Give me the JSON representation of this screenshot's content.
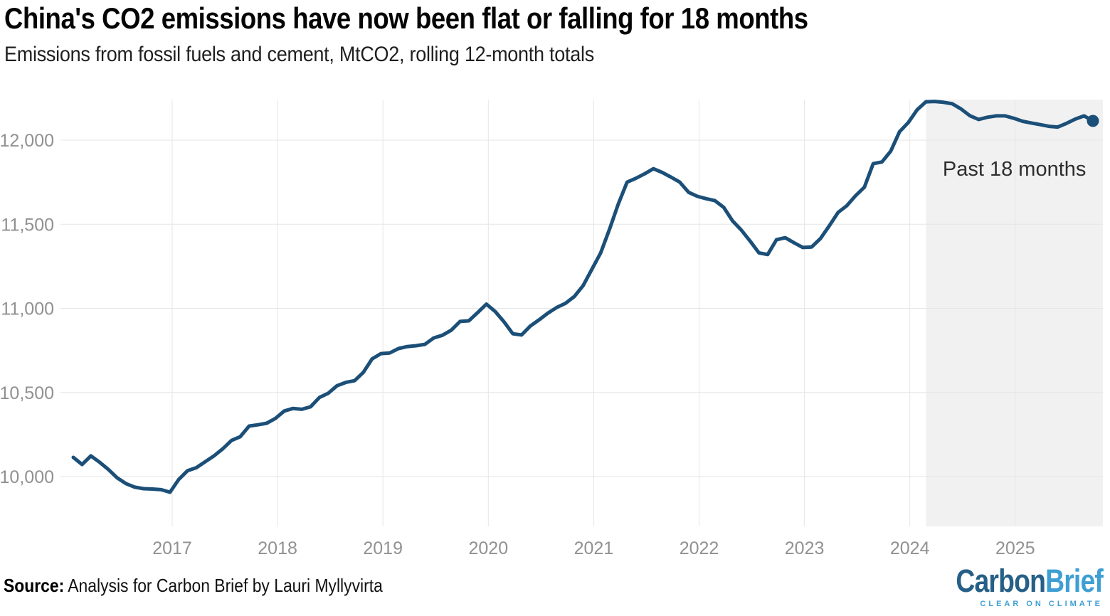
{
  "header": {
    "title": "China's CO2 emissions have now been flat or falling for 18 months",
    "subtitle": "Emissions from fossil fuels and cement, MtCO2, rolling 12-month totals"
  },
  "footer": {
    "source_label": "Source:",
    "source_text": "Analysis for Carbon Brief by Lauri Myllyvirta"
  },
  "logo": {
    "part1": "Carbon",
    "part2": "Brief",
    "tagline": "CLEAR ON CLIMATE"
  },
  "colors": {
    "line": "#1b4f78",
    "band": "#f1f1f1",
    "grid": "#e6e6e6",
    "axis_text": "#919191",
    "annotation_text": "#2e2e2e",
    "logo_dark": "#265f87",
    "logo_light": "#3e9fd4"
  },
  "chart_data": {
    "type": "line",
    "title": "China's CO2 emissions have now been flat or falling for 18 months",
    "subtitle": "Emissions from fossil fuels and cement, MtCO2, rolling 12-month totals",
    "ylabel": "MtCO2, rolling 12-month totals",
    "xlabel": "",
    "legend": false,
    "grid": "horizontal-and-vertical",
    "ylim": [
      9700,
      12250
    ],
    "y_ticks": [
      10000,
      10500,
      11000,
      11500,
      12000
    ],
    "x_ticks": [
      "2017",
      "2018",
      "2019",
      "2020",
      "2021",
      "2022",
      "2023",
      "2024",
      "2025"
    ],
    "annotation": "Past 18 months",
    "highlight_band": {
      "start": "2024-03",
      "end": "2025-10",
      "label": "Past 18 months"
    },
    "x": [
      "2016-02",
      "2016-03",
      "2016-04",
      "2016-05",
      "2016-06",
      "2016-07",
      "2016-08",
      "2016-09",
      "2016-10",
      "2016-11",
      "2016-12",
      "2017-01",
      "2017-02",
      "2017-03",
      "2017-04",
      "2017-05",
      "2017-06",
      "2017-07",
      "2017-08",
      "2017-09",
      "2017-10",
      "2017-11",
      "2017-12",
      "2018-01",
      "2018-02",
      "2018-03",
      "2018-04",
      "2018-05",
      "2018-06",
      "2018-07",
      "2018-08",
      "2018-09",
      "2018-10",
      "2018-11",
      "2018-12",
      "2019-01",
      "2019-02",
      "2019-03",
      "2019-04",
      "2019-05",
      "2019-06",
      "2019-07",
      "2019-08",
      "2019-09",
      "2019-10",
      "2019-11",
      "2019-12",
      "2020-01",
      "2020-02",
      "2020-03",
      "2020-04",
      "2020-05",
      "2020-06",
      "2020-07",
      "2020-08",
      "2020-09",
      "2020-10",
      "2020-11",
      "2020-12",
      "2021-01",
      "2021-02",
      "2021-03",
      "2021-04",
      "2021-05",
      "2021-06",
      "2021-07",
      "2021-08",
      "2021-09",
      "2021-10",
      "2021-11",
      "2021-12",
      "2022-01",
      "2022-02",
      "2022-03",
      "2022-04",
      "2022-05",
      "2022-06",
      "2022-07",
      "2022-08",
      "2022-09",
      "2022-10",
      "2022-11",
      "2022-12",
      "2023-01",
      "2023-02",
      "2023-03",
      "2023-04",
      "2023-05",
      "2023-06",
      "2023-07",
      "2023-08",
      "2023-09",
      "2023-10",
      "2023-11",
      "2023-12",
      "2024-01",
      "2024-02",
      "2024-03",
      "2024-04",
      "2024-05",
      "2024-06",
      "2024-07",
      "2024-08",
      "2024-09",
      "2024-10",
      "2024-11",
      "2024-12",
      "2025-01",
      "2025-02",
      "2025-03",
      "2025-04",
      "2025-05",
      "2025-06",
      "2025-07",
      "2025-08",
      "2025-09",
      "2025-10"
    ],
    "values": [
      10114,
      10072,
      10123,
      10085,
      10042,
      9992,
      9958,
      9937,
      9928,
      9926,
      9922,
      9907,
      9983,
      10035,
      10053,
      10088,
      10123,
      10165,
      10215,
      10237,
      10300,
      10308,
      10317,
      10346,
      10390,
      10405,
      10400,
      10415,
      10470,
      10495,
      10540,
      10560,
      10570,
      10620,
      10700,
      10731,
      10735,
      10761,
      10773,
      10778,
      10786,
      10824,
      10840,
      10870,
      10922,
      10926,
      10975,
      11025,
      10981,
      10920,
      10849,
      10842,
      10895,
      10932,
      10972,
      11005,
      11030,
      11070,
      11135,
      11233,
      11330,
      11470,
      11620,
      11750,
      11773,
      11800,
      11830,
      11808,
      11780,
      11750,
      11690,
      11666,
      11652,
      11640,
      11600,
      11520,
      11465,
      11400,
      11330,
      11320,
      11408,
      11420,
      11390,
      11362,
      11365,
      11415,
      11490,
      11570,
      11610,
      11670,
      11720,
      11860,
      11870,
      11935,
      12050,
      12105,
      12180,
      12228,
      12230,
      12225,
      12216,
      12185,
      12145,
      12123,
      12136,
      12144,
      12144,
      12130,
      12112,
      12102,
      12092,
      12082,
      12078,
      12100,
      12125,
      12144,
      12114
    ]
  }
}
